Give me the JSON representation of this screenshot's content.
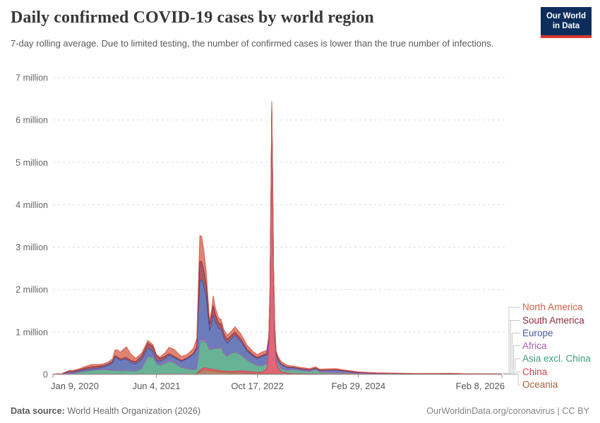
{
  "header": {
    "title": "Daily confirmed COVID-19 cases by world region",
    "subtitle": "7-day rolling average. Due to limited testing, the number of confirmed cases is lower than the true number of infections.",
    "logo": {
      "line1": "Our World",
      "line2": "in Data"
    }
  },
  "footer": {
    "source_label": "Data source:",
    "source_value": " World Health Organization (2026)",
    "license": "OurWorldinData.org/coronavirus | CC BY"
  },
  "colors": {
    "logo_bg": "#0d2e5c",
    "logo_stripe": "#d7392b",
    "gridline": "#d9d9d9",
    "axis": "#8d8d8d",
    "connector": "#c8c8c8",
    "y_tick_text": "#666666",
    "x_tick_text": "#57575b"
  },
  "chart_data": {
    "type": "area",
    "stacked": true,
    "title": "Daily confirmed COVID-19 cases by world region",
    "unit": "cases per day (millions, 7-day rolling average)",
    "grid": true,
    "legend_position": "right",
    "y_axis": {
      "min": 0,
      "max": 7,
      "ticks": [
        {
          "value": 0,
          "label": "0"
        },
        {
          "value": 1,
          "label": "1 million"
        },
        {
          "value": 2,
          "label": "2 million"
        },
        {
          "value": 3,
          "label": "3 million"
        },
        {
          "value": 4,
          "label": "4 million"
        },
        {
          "value": 5,
          "label": "5 million"
        },
        {
          "value": 6,
          "label": "6 million"
        },
        {
          "value": 7,
          "label": "7 million"
        }
      ]
    },
    "x_axis": {
      "start_date": "Jan 9, 2020",
      "end_date": "Feb 8, 2026",
      "span_days": 2222,
      "ticks": [
        {
          "day": 0,
          "label": "Jan 9, 2020"
        },
        {
          "day": 512,
          "label": "Jun 4, 2021"
        },
        {
          "day": 1012,
          "label": "Oct 17, 2022"
        },
        {
          "day": 1512,
          "label": "Feb 29, 2024"
        },
        {
          "day": 2222,
          "label": "Feb 8, 2026"
        }
      ]
    },
    "days": [
      0,
      25,
      40,
      60,
      80,
      100,
      130,
      160,
      190,
      220,
      250,
      275,
      295,
      307,
      320,
      333,
      350,
      364,
      385,
      410,
      440,
      470,
      495,
      512,
      530,
      555,
      575,
      600,
      635,
      665,
      695,
      712,
      727,
      735,
      745,
      758,
      775,
      786,
      793,
      805,
      820,
      832,
      845,
      862,
      880,
      901,
      930,
      960,
      990,
      1012,
      1038,
      1058,
      1068,
      1074,
      1079,
      1083,
      1087,
      1092,
      1098,
      1105,
      1115,
      1130,
      1160,
      1190,
      1230,
      1270,
      1300,
      1320,
      1360,
      1400,
      1440,
      1512,
      1600,
      1700,
      1800,
      1900,
      1960,
      2040,
      2120,
      2222
    ],
    "stack_order_bottom_to_top": [
      "Oceania",
      "China",
      "Asia excl. China",
      "Africa",
      "Europe",
      "South America",
      "North America"
    ],
    "series": [
      {
        "name": "North America",
        "color": "#d9604c",
        "values": [
          0,
          0,
          0.001,
          0.012,
          0.028,
          0.027,
          0.026,
          0.038,
          0.058,
          0.044,
          0.04,
          0.047,
          0.06,
          0.14,
          0.165,
          0.16,
          0.21,
          0.25,
          0.15,
          0.08,
          0.068,
          0.068,
          0.046,
          0.032,
          0.035,
          0.08,
          0.15,
          0.165,
          0.1,
          0.082,
          0.12,
          0.2,
          0.61,
          0.6,
          0.5,
          0.33,
          0.11,
          0.14,
          0.23,
          0.16,
          0.12,
          0.11,
          0.1,
          0.1,
          0.1,
          0.13,
          0.12,
          0.1,
          0.08,
          0.07,
          0.08,
          0.08,
          0.08,
          0.08,
          0.08,
          0.08,
          0.078,
          0.075,
          0.072,
          0.07,
          0.068,
          0.06,
          0.045,
          0.03,
          0.028,
          0.03,
          0.028,
          0.025,
          0.03,
          0.028,
          0.022,
          0.012,
          0.008,
          0.006,
          0.004,
          0.003,
          0.003,
          0.002,
          0.002,
          0.002
        ]
      },
      {
        "name": "South America",
        "color": "#8e2d3c",
        "values": [
          0,
          0,
          0,
          0.001,
          0.004,
          0.01,
          0.03,
          0.042,
          0.05,
          0.048,
          0.04,
          0.037,
          0.035,
          0.038,
          0.038,
          0.035,
          0.04,
          0.045,
          0.048,
          0.06,
          0.085,
          0.115,
          0.12,
          0.105,
          0.075,
          0.055,
          0.042,
          0.03,
          0.022,
          0.018,
          0.022,
          0.05,
          0.45,
          0.43,
          0.38,
          0.28,
          0.15,
          0.19,
          0.22,
          0.17,
          0.13,
          0.12,
          0.1,
          0.09,
          0.08,
          0.075,
          0.06,
          0.045,
          0.035,
          0.03,
          0.025,
          0.02,
          0.018,
          0.017,
          0.016,
          0.016,
          0.015,
          0.014,
          0.014,
          0.013,
          0.013,
          0.012,
          0.01,
          0.008,
          0.007,
          0.006,
          0.005,
          0.005,
          0.004,
          0.004,
          0.003,
          0.002,
          0.002,
          0.001,
          0.001,
          0.001,
          0.001,
          0.001,
          0.001,
          0.001
        ]
      },
      {
        "name": "Europe",
        "color": "#4357a8",
        "values": [
          0,
          0,
          0.002,
          0.03,
          0.042,
          0.033,
          0.022,
          0.02,
          0.02,
          0.025,
          0.045,
          0.1,
          0.17,
          0.3,
          0.27,
          0.23,
          0.24,
          0.245,
          0.19,
          0.155,
          0.2,
          0.185,
          0.115,
          0.065,
          0.07,
          0.09,
          0.115,
          0.1,
          0.13,
          0.23,
          0.35,
          0.44,
          1.43,
          1.42,
          1.3,
          1.05,
          0.42,
          0.6,
          0.78,
          0.6,
          0.45,
          0.42,
          0.35,
          0.3,
          0.32,
          0.38,
          0.3,
          0.2,
          0.16,
          0.15,
          0.22,
          0.2,
          0.17,
          0.16,
          0.14,
          0.13,
          0.12,
          0.12,
          0.11,
          0.11,
          0.1,
          0.09,
          0.06,
          0.04,
          0.03,
          0.03,
          0.025,
          0.03,
          0.05,
          0.06,
          0.045,
          0.02,
          0.012,
          0.008,
          0.006,
          0.005,
          0.004,
          0.003,
          0.003,
          0.002
        ]
      },
      {
        "name": "Africa",
        "color": "#b05cbb",
        "values": [
          0,
          0,
          0,
          0.001,
          0.002,
          0.003,
          0.006,
          0.012,
          0.015,
          0.012,
          0.008,
          0.008,
          0.008,
          0.01,
          0.012,
          0.014,
          0.02,
          0.022,
          0.015,
          0.009,
          0.01,
          0.012,
          0.014,
          0.018,
          0.024,
          0.03,
          0.028,
          0.022,
          0.008,
          0.006,
          0.012,
          0.04,
          0.05,
          0.045,
          0.04,
          0.03,
          0.022,
          0.02,
          0.02,
          0.018,
          0.016,
          0.015,
          0.013,
          0.012,
          0.012,
          0.012,
          0.01,
          0.008,
          0.006,
          0.005,
          0.005,
          0.004,
          0.004,
          0.004,
          0.004,
          0.004,
          0.004,
          0.003,
          0.003,
          0.003,
          0.003,
          0.003,
          0.003,
          0.003,
          0.002,
          0.002,
          0.002,
          0.002,
          0.002,
          0.002,
          0.002,
          0.001,
          0.001,
          0.001,
          0.001,
          0.001,
          0.001,
          0.001,
          0.001,
          0.001
        ]
      },
      {
        "name": "Asia excl. China",
        "color": "#3e9e78",
        "values": [
          0,
          0.001,
          0.002,
          0.008,
          0.012,
          0.02,
          0.045,
          0.07,
          0.088,
          0.1,
          0.112,
          0.1,
          0.09,
          0.088,
          0.085,
          0.08,
          0.082,
          0.085,
          0.075,
          0.072,
          0.14,
          0.42,
          0.4,
          0.25,
          0.2,
          0.25,
          0.3,
          0.27,
          0.16,
          0.13,
          0.1,
          0.1,
          0.63,
          0.64,
          0.62,
          0.6,
          0.45,
          0.46,
          0.48,
          0.5,
          0.52,
          0.55,
          0.42,
          0.35,
          0.42,
          0.45,
          0.38,
          0.27,
          0.2,
          0.16,
          0.15,
          0.13,
          0.12,
          0.12,
          0.11,
          0.1,
          0.1,
          0.09,
          0.09,
          0.09,
          0.09,
          0.08,
          0.07,
          0.1,
          0.08,
          0.06,
          0.11,
          0.05,
          0.04,
          0.035,
          0.03,
          0.02,
          0.012,
          0.01,
          0.008,
          0.01,
          0.015,
          0.008,
          0.005,
          0.004
        ]
      },
      {
        "name": "China",
        "color": "#d73c50",
        "values": [
          0.003,
          0.012,
          0.004,
          0.001,
          0.001,
          0.001,
          0.001,
          0.001,
          0.001,
          0.001,
          0.001,
          0.001,
          0.001,
          0.001,
          0.001,
          0.001,
          0.001,
          0.001,
          0.001,
          0.001,
          0.001,
          0.001,
          0.001,
          0.001,
          0.001,
          0.001,
          0.001,
          0.001,
          0.001,
          0.001,
          0.001,
          0.002,
          0.04,
          0.045,
          0.05,
          0.05,
          0.04,
          0.04,
          0.04,
          0.035,
          0.032,
          0.03,
          0.028,
          0.025,
          0.03,
          0.035,
          0.05,
          0.045,
          0.04,
          0.035,
          0.04,
          0.12,
          0.5,
          1.6,
          3.9,
          6.1,
          4.6,
          2.2,
          0.85,
          0.25,
          0.14,
          0.05,
          0.02,
          0.01,
          0.008,
          0.006,
          0.005,
          0.004,
          0.004,
          0.003,
          0.003,
          0.002,
          0.002,
          0.002,
          0.001,
          0.001,
          0.001,
          0.001,
          0.001,
          0.001
        ]
      },
      {
        "name": "Oceania",
        "color": "#a4613c",
        "values": [
          0,
          0,
          0,
          0.001,
          0.001,
          0.001,
          0.001,
          0.001,
          0.001,
          0.001,
          0.001,
          0.001,
          0.001,
          0.001,
          0.001,
          0.001,
          0.001,
          0.001,
          0.001,
          0.001,
          0.001,
          0.001,
          0.001,
          0.001,
          0.002,
          0.002,
          0.002,
          0.002,
          0.002,
          0.002,
          0.004,
          0.012,
          0.06,
          0.08,
          0.1,
          0.105,
          0.09,
          0.085,
          0.08,
          0.07,
          0.06,
          0.055,
          0.05,
          0.045,
          0.04,
          0.038,
          0.033,
          0.025,
          0.018,
          0.015,
          0.012,
          0.01,
          0.01,
          0.009,
          0.009,
          0.008,
          0.008,
          0.008,
          0.007,
          0.007,
          0.007,
          0.006,
          0.005,
          0.004,
          0.004,
          0.003,
          0.003,
          0.003,
          0.002,
          0.002,
          0.002,
          0.001,
          0.001,
          0.001,
          0.001,
          0.001,
          0.001,
          0.001,
          0.001,
          0.001
        ]
      }
    ]
  }
}
